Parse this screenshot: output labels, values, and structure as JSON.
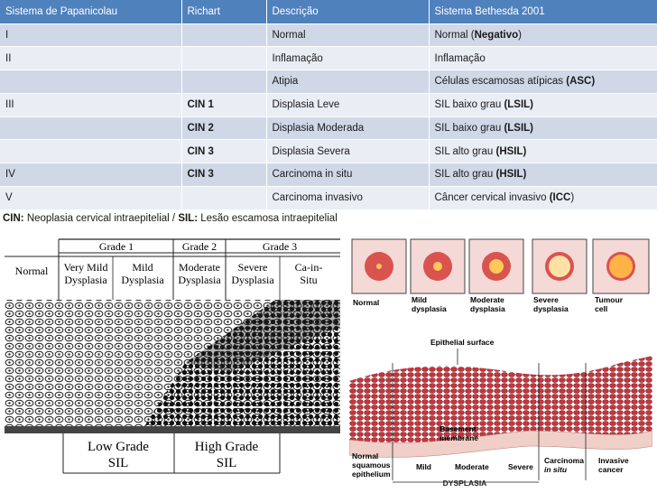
{
  "table": {
    "headers": [
      "Sistema  de Papanicolau",
      "Richart",
      "Descrição",
      "Sistema Bethesda 2001"
    ],
    "rows": [
      {
        "pap": "I",
        "richart": "",
        "desc": "Normal",
        "beth": "Normal (",
        "beth_bold": "Negativo",
        "beth_tail": ")"
      },
      {
        "pap": "II",
        "richart": "",
        "desc": "Inflamação",
        "beth": "Inflamação",
        "beth_bold": "",
        "beth_tail": ""
      },
      {
        "pap": "",
        "richart": "",
        "desc": "Atipia",
        "beth": "Células escamosas atípicas ",
        "beth_bold": "(ASC)",
        "beth_tail": ""
      },
      {
        "pap": "III",
        "richart": "CIN 1",
        "desc": "Displasia Leve",
        "beth": "SIL baixo grau ",
        "beth_bold": "(LSIL)",
        "beth_tail": ""
      },
      {
        "pap": "",
        "richart": "CIN 2",
        "desc": "Displasia Moderada",
        "beth": "SIL baixo grau ",
        "beth_bold": "(LSIL)",
        "beth_tail": ""
      },
      {
        "pap": "",
        "richart": "CIN 3",
        "desc": "Displasia Severa",
        "beth": "SIL  alto grau ",
        "beth_bold": "(HSIL)",
        "beth_tail": ""
      },
      {
        "pap": "IV",
        "richart": "CIN 3",
        "desc": "Carcinoma in situ",
        "beth": "SIL  alto grau ",
        "beth_bold": "(HSIL)",
        "beth_tail": ""
      },
      {
        "pap": "V",
        "richart": "",
        "desc": "Carcinoma invasivo",
        "beth": "Câncer cervical invasivo ",
        "beth_bold": "(ICC",
        "beth_tail": ")"
      }
    ]
  },
  "legend": {
    "cin_abbr": "CIN:",
    "cin_text": " Neoplasia cervical intraepitelial / ",
    "sil_abbr": "SIL:",
    "sil_text": " Lesão escamosa intraepitelial"
  },
  "left_figure": {
    "grade1": "Grade 1",
    "grade2": "Grade 2",
    "grade3": "Grade 3",
    "normal": "Normal",
    "very_mild_1": "Very Mild",
    "very_mild_2": "Dysplasia",
    "mild_1": "Mild",
    "mild_2": "Dysplasia",
    "moderate_1": "Moderate",
    "moderate_2": "Dysplasia",
    "severe_1": "Severe",
    "severe_2": "Dysplasia",
    "cis_1": "Ca-in-",
    "cis_2": "Situ",
    "low_grade_1": "Low Grade",
    "low_grade_2": "SIL",
    "high_grade_1": "High Grade",
    "high_grade_2": "SIL"
  },
  "right_figure": {
    "normal": "Normal",
    "mild_1": "Mild",
    "mild_2": "dysplasia",
    "moderate_1": "Moderate",
    "moderate_2": "dysplasia",
    "severe_1": "Severe",
    "severe_2": "dysplasia",
    "tumour_1": "Tumour",
    "tumour_2": "cell",
    "epithelial_surface": "Epithelial surface",
    "basement_1": "Basement",
    "basement_2": "membrane",
    "normal_sq_1": "Normal",
    "normal_sq_2": "squamous",
    "normal_sq_3": "epithelium",
    "mild": "Mild",
    "moderate": "Moderate",
    "severe": "Severe",
    "carcinoma_1": "Carcinoma",
    "carcinoma_2": "in situ",
    "invasive_1": "Invasive",
    "invasive_2": "cancer",
    "dysplasia": "DYSPLASIA"
  }
}
